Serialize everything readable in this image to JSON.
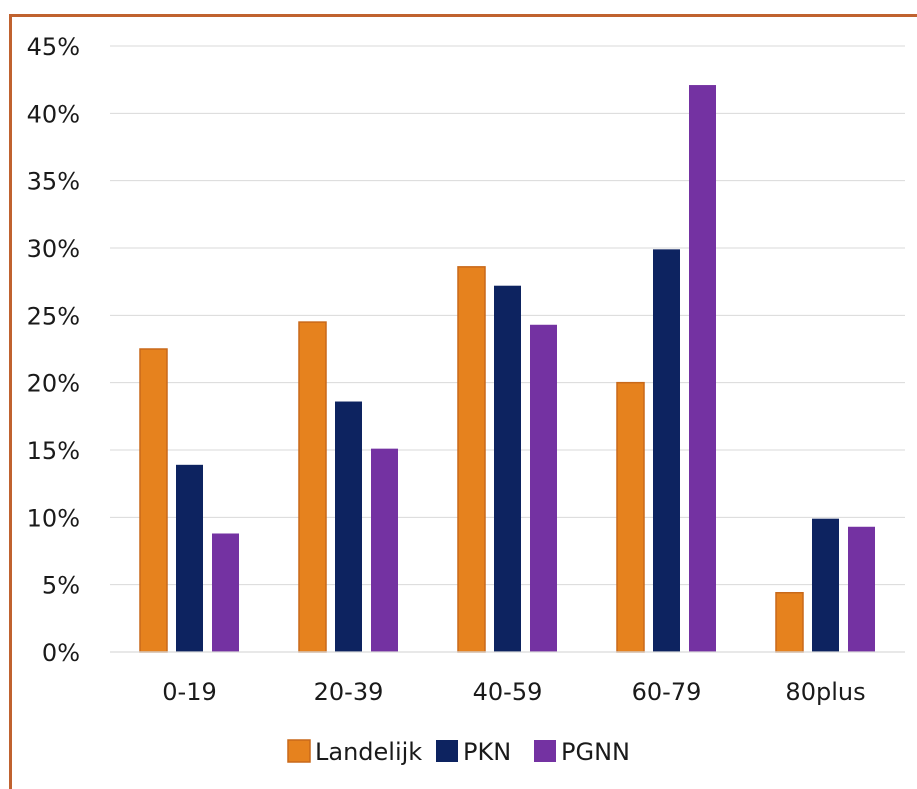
{
  "chart_data": {
    "type": "bar",
    "categories": [
      "0-19",
      "20-39",
      "40-59",
      "60-79",
      "80plus"
    ],
    "series": [
      {
        "name": "Landelijk",
        "color": "#e6821e",
        "values": [
          22.5,
          24.5,
          28.6,
          20.0,
          4.4
        ]
      },
      {
        "name": "PKN",
        "color": "#0d2360",
        "values": [
          13.9,
          18.6,
          27.2,
          29.9,
          9.9
        ]
      },
      {
        "name": "PGNN",
        "color": "#7432a2",
        "values": [
          8.8,
          15.1,
          24.3,
          42.1,
          9.3
        ]
      }
    ],
    "ylim": [
      0,
      45
    ],
    "yticks": [
      "0%",
      "5%",
      "10%",
      "15%",
      "20%",
      "25%",
      "30%",
      "35%",
      "40%",
      "45%"
    ],
    "ytick_values": [
      0,
      5,
      10,
      15,
      20,
      25,
      30,
      35,
      40,
      45
    ],
    "grid": true,
    "legend_position": "bottom",
    "title": "",
    "xlabel": "",
    "ylabel": ""
  }
}
